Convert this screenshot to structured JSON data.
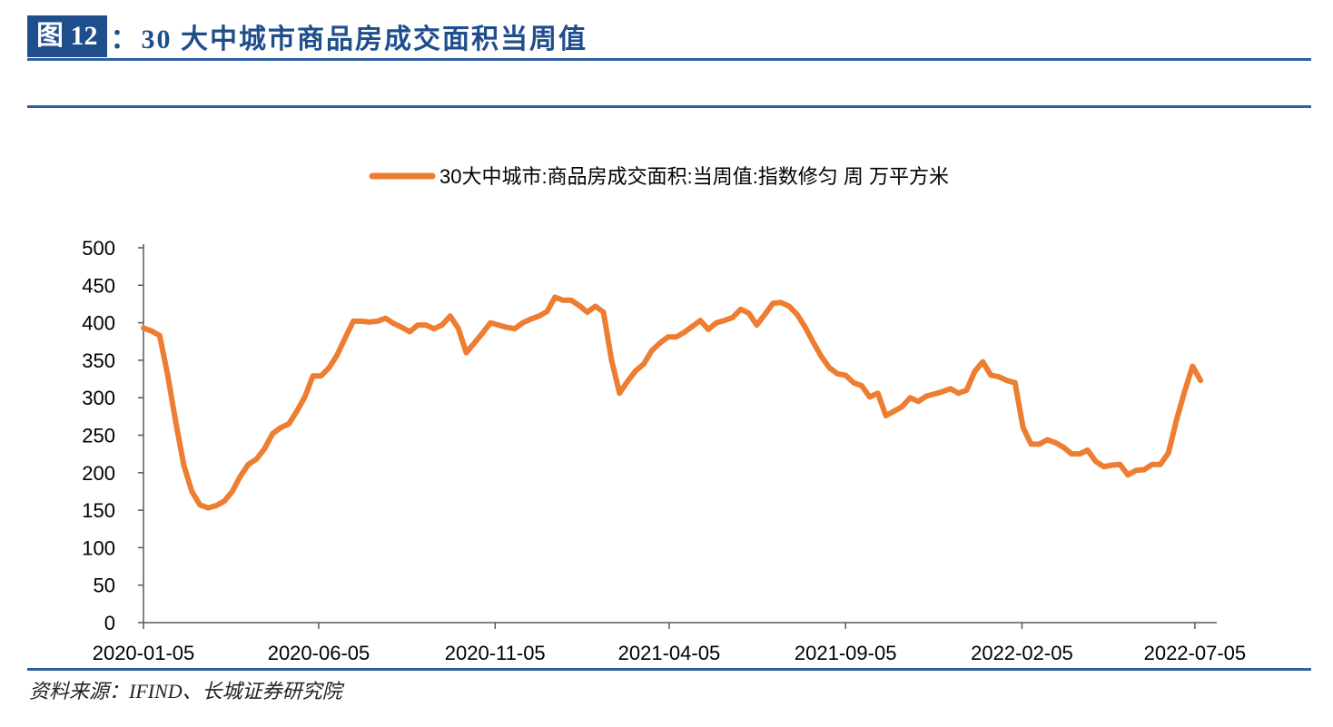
{
  "figure": {
    "badge": "图 12",
    "separator": "：",
    "title": "30 大中城市商品房成交面积当周值",
    "source": "资料来源：IFIND、长城证券研究院"
  },
  "colors": {
    "accent": "#1f4e8c",
    "series": "#ed7d31"
  },
  "chart_data": {
    "type": "line",
    "legend_position": "top",
    "grid": false,
    "ylim": [
      0,
      500
    ],
    "yticks": [
      0,
      50,
      100,
      150,
      200,
      250,
      300,
      350,
      400,
      450,
      500
    ],
    "xlim": [
      "2020-01-05",
      "2022-07-24"
    ],
    "xtick_labels": [
      "2020-01-05",
      "2020-06-05",
      "2020-11-05",
      "2021-04-05",
      "2021-09-05",
      "2022-02-05",
      "2022-07-05"
    ],
    "series": [
      {
        "name": "30大中城市:商品房成交面积:当周值:指数修匀 周 万平方米",
        "points": [
          [
            "2020-01-05",
            393
          ],
          [
            "2020-01-12",
            389
          ],
          [
            "2020-01-19",
            383
          ],
          [
            "2020-01-26",
            330
          ],
          [
            "2020-02-02",
            268
          ],
          [
            "2020-02-09",
            210
          ],
          [
            "2020-02-16",
            175
          ],
          [
            "2020-02-23",
            157
          ],
          [
            "2020-03-01",
            153
          ],
          [
            "2020-03-08",
            156
          ],
          [
            "2020-03-15",
            162
          ],
          [
            "2020-03-22",
            175
          ],
          [
            "2020-03-29",
            195
          ],
          [
            "2020-04-05",
            211
          ],
          [
            "2020-04-12",
            218
          ],
          [
            "2020-04-19",
            232
          ],
          [
            "2020-04-26",
            252
          ],
          [
            "2020-05-03",
            260
          ],
          [
            "2020-05-10",
            265
          ],
          [
            "2020-05-17",
            282
          ],
          [
            "2020-05-24",
            301
          ],
          [
            "2020-05-31",
            329
          ],
          [
            "2020-06-07",
            329
          ],
          [
            "2020-06-14",
            340
          ],
          [
            "2020-06-21",
            357
          ],
          [
            "2020-06-28",
            380
          ],
          [
            "2020-07-05",
            402
          ],
          [
            "2020-07-12",
            402
          ],
          [
            "2020-07-19",
            401
          ],
          [
            "2020-07-26",
            402
          ],
          [
            "2020-08-02",
            406
          ],
          [
            "2020-08-09",
            399
          ],
          [
            "2020-08-16",
            394
          ],
          [
            "2020-08-23",
            388
          ],
          [
            "2020-08-30",
            397
          ],
          [
            "2020-09-06",
            397
          ],
          [
            "2020-09-13",
            392
          ],
          [
            "2020-09-20",
            397
          ],
          [
            "2020-09-27",
            409
          ],
          [
            "2020-10-04",
            393
          ],
          [
            "2020-10-11",
            360
          ],
          [
            "2020-10-18",
            373
          ],
          [
            "2020-10-25",
            386
          ],
          [
            "2020-11-01",
            400
          ],
          [
            "2020-11-08",
            397
          ],
          [
            "2020-11-15",
            394
          ],
          [
            "2020-11-22",
            392
          ],
          [
            "2020-11-29",
            400
          ],
          [
            "2020-12-06",
            405
          ],
          [
            "2020-12-13",
            409
          ],
          [
            "2020-12-20",
            415
          ],
          [
            "2020-12-27",
            434
          ],
          [
            "2021-01-03",
            430
          ],
          [
            "2021-01-10",
            430
          ],
          [
            "2021-01-17",
            423
          ],
          [
            "2021-01-24",
            414
          ],
          [
            "2021-01-31",
            422
          ],
          [
            "2021-02-07",
            414
          ],
          [
            "2021-02-14",
            350
          ],
          [
            "2021-02-21",
            306
          ],
          [
            "2021-02-28",
            322
          ],
          [
            "2021-03-07",
            336
          ],
          [
            "2021-03-14",
            345
          ],
          [
            "2021-03-21",
            363
          ],
          [
            "2021-03-28",
            373
          ],
          [
            "2021-04-04",
            381
          ],
          [
            "2021-04-11",
            381
          ],
          [
            "2021-04-18",
            387
          ],
          [
            "2021-04-25",
            395
          ],
          [
            "2021-05-02",
            403
          ],
          [
            "2021-05-09",
            391
          ],
          [
            "2021-05-16",
            400
          ],
          [
            "2021-05-23",
            403
          ],
          [
            "2021-05-30",
            407
          ],
          [
            "2021-06-06",
            418
          ],
          [
            "2021-06-13",
            413
          ],
          [
            "2021-06-20",
            397
          ],
          [
            "2021-06-27",
            411
          ],
          [
            "2021-07-04",
            426
          ],
          [
            "2021-07-11",
            427
          ],
          [
            "2021-07-18",
            422
          ],
          [
            "2021-07-25",
            411
          ],
          [
            "2021-08-01",
            394
          ],
          [
            "2021-08-08",
            374
          ],
          [
            "2021-08-15",
            355
          ],
          [
            "2021-08-22",
            340
          ],
          [
            "2021-08-29",
            332
          ],
          [
            "2021-09-05",
            330
          ],
          [
            "2021-09-12",
            320
          ],
          [
            "2021-09-19",
            316
          ],
          [
            "2021-09-26",
            301
          ],
          [
            "2021-10-03",
            306
          ],
          [
            "2021-10-10",
            276
          ],
          [
            "2021-10-17",
            282
          ],
          [
            "2021-10-24",
            288
          ],
          [
            "2021-10-31",
            300
          ],
          [
            "2021-11-07",
            295
          ],
          [
            "2021-11-14",
            302
          ],
          [
            "2021-11-21",
            305
          ],
          [
            "2021-11-28",
            308
          ],
          [
            "2021-12-05",
            312
          ],
          [
            "2021-12-12",
            306
          ],
          [
            "2021-12-19",
            310
          ],
          [
            "2021-12-26",
            335
          ],
          [
            "2022-01-02",
            348
          ],
          [
            "2022-01-09",
            330
          ],
          [
            "2022-01-16",
            328
          ],
          [
            "2022-01-23",
            323
          ],
          [
            "2022-01-30",
            320
          ],
          [
            "2022-02-06",
            260
          ],
          [
            "2022-02-13",
            238
          ],
          [
            "2022-02-20",
            238
          ],
          [
            "2022-02-27",
            244
          ],
          [
            "2022-03-06",
            240
          ],
          [
            "2022-03-13",
            234
          ],
          [
            "2022-03-20",
            225
          ],
          [
            "2022-03-27",
            225
          ],
          [
            "2022-04-03",
            230
          ],
          [
            "2022-04-10",
            215
          ],
          [
            "2022-04-17",
            208
          ],
          [
            "2022-04-24",
            210
          ],
          [
            "2022-05-01",
            211
          ],
          [
            "2022-05-08",
            197
          ],
          [
            "2022-05-15",
            203
          ],
          [
            "2022-05-22",
            204
          ],
          [
            "2022-05-29",
            211
          ],
          [
            "2022-06-05",
            211
          ],
          [
            "2022-06-12",
            226
          ],
          [
            "2022-06-19",
            270
          ],
          [
            "2022-06-26",
            308
          ],
          [
            "2022-07-03",
            342
          ],
          [
            "2022-07-10",
            323
          ]
        ]
      }
    ]
  }
}
